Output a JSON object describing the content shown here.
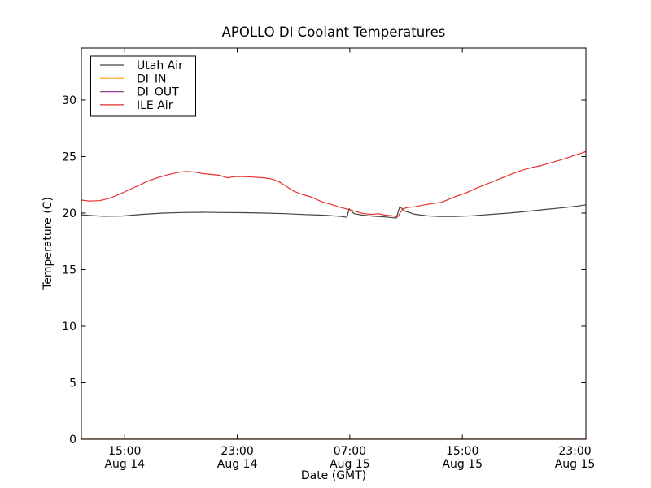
{
  "figure": {
    "background": "#ffffff",
    "axis_color": "#000000"
  },
  "chart_data": {
    "type": "line",
    "title": "APOLLO DI Coolant Temperatures",
    "xlabel": "Date (GMT)",
    "ylabel": "Temperature (C)",
    "grid": false,
    "legend_position": "upper left",
    "x_units": "hours_since_Aug14_0000_GMT",
    "xlim": [
      11.92,
      47.78
    ],
    "ylim": [
      0,
      34.6
    ],
    "yticks": [
      0,
      5,
      10,
      15,
      20,
      25,
      30
    ],
    "xticks": [
      {
        "t": 15,
        "time": "15:00",
        "date": "Aug 14"
      },
      {
        "t": 23,
        "time": "23:00",
        "date": "Aug 14"
      },
      {
        "t": 31,
        "time": "07:00",
        "date": "Aug 15"
      },
      {
        "t": 39,
        "time": "15:00",
        "date": "Aug 15"
      },
      {
        "t": 47,
        "time": "23:00",
        "date": "Aug 15"
      }
    ],
    "series": [
      {
        "name": "Utah Air",
        "color": "#444444",
        "points": [
          [
            11.92,
            19.85
          ],
          [
            12.6,
            19.78
          ],
          [
            13.5,
            19.72
          ],
          [
            14.8,
            19.74
          ],
          [
            16.2,
            19.88
          ],
          [
            17.7,
            20.0
          ],
          [
            19.1,
            20.05
          ],
          [
            20.6,
            20.07
          ],
          [
            22.0,
            20.05
          ],
          [
            23.5,
            20.03
          ],
          [
            25.0,
            20.0
          ],
          [
            26.4,
            19.95
          ],
          [
            27.8,
            19.87
          ],
          [
            29.3,
            19.8
          ],
          [
            30.4,
            19.7
          ],
          [
            30.8,
            19.62
          ],
          [
            30.95,
            20.38
          ],
          [
            31.3,
            19.95
          ],
          [
            31.9,
            19.82
          ],
          [
            32.7,
            19.72
          ],
          [
            33.6,
            19.65
          ],
          [
            34.3,
            19.55
          ],
          [
            34.55,
            20.58
          ],
          [
            34.9,
            20.18
          ],
          [
            35.6,
            19.9
          ],
          [
            36.5,
            19.75
          ],
          [
            37.4,
            19.7
          ],
          [
            38.5,
            19.7
          ],
          [
            39.7,
            19.76
          ],
          [
            41.0,
            19.88
          ],
          [
            42.3,
            20.0
          ],
          [
            43.6,
            20.15
          ],
          [
            44.9,
            20.32
          ],
          [
            46.2,
            20.48
          ],
          [
            47.2,
            20.62
          ],
          [
            47.78,
            20.73
          ]
        ]
      },
      {
        "name": "DI_IN",
        "color": "#ffb045",
        "opacity": 0.6,
        "points": [
          [
            11.92,
            0.03
          ],
          [
            47.78,
            0.03
          ]
        ]
      },
      {
        "name": "DI_OUT",
        "color": "#93439a",
        "opacity": 0.6,
        "points": [
          [
            11.92,
            0
          ],
          [
            47.78,
            0
          ]
        ]
      },
      {
        "name": "ILE Air",
        "color": "#e62e2e",
        "points": [
          [
            11.92,
            21.15
          ],
          [
            12.5,
            21.06
          ],
          [
            13.2,
            21.1
          ],
          [
            13.9,
            21.3
          ],
          [
            14.6,
            21.65
          ],
          [
            15.3,
            22.05
          ],
          [
            16.0,
            22.45
          ],
          [
            16.7,
            22.85
          ],
          [
            17.4,
            23.15
          ],
          [
            18.1,
            23.4
          ],
          [
            18.8,
            23.6
          ],
          [
            19.4,
            23.68
          ],
          [
            20.0,
            23.62
          ],
          [
            20.5,
            23.5
          ],
          [
            21.1,
            23.42
          ],
          [
            21.7,
            23.35
          ],
          [
            22.3,
            23.12
          ],
          [
            22.8,
            23.22
          ],
          [
            23.5,
            23.22
          ],
          [
            24.2,
            23.18
          ],
          [
            24.9,
            23.12
          ],
          [
            25.5,
            23.0
          ],
          [
            26.0,
            22.75
          ],
          [
            26.5,
            22.35
          ],
          [
            27.0,
            21.95
          ],
          [
            27.6,
            21.65
          ],
          [
            28.3,
            21.4
          ],
          [
            29.0,
            21.0
          ],
          [
            29.6,
            20.8
          ],
          [
            30.2,
            20.55
          ],
          [
            30.8,
            20.35
          ],
          [
            31.4,
            20.15
          ],
          [
            32.0,
            19.95
          ],
          [
            32.6,
            19.88
          ],
          [
            33.0,
            19.95
          ],
          [
            33.5,
            19.82
          ],
          [
            34.0,
            19.75
          ],
          [
            34.4,
            19.67
          ],
          [
            34.75,
            20.35
          ],
          [
            35.1,
            20.5
          ],
          [
            35.6,
            20.55
          ],
          [
            36.2,
            20.7
          ],
          [
            36.9,
            20.85
          ],
          [
            37.5,
            20.95
          ],
          [
            38.1,
            21.25
          ],
          [
            38.6,
            21.5
          ],
          [
            39.2,
            21.75
          ],
          [
            39.9,
            22.15
          ],
          [
            40.5,
            22.45
          ],
          [
            41.2,
            22.8
          ],
          [
            41.9,
            23.15
          ],
          [
            42.6,
            23.5
          ],
          [
            43.3,
            23.8
          ],
          [
            44.0,
            24.05
          ],
          [
            44.6,
            24.2
          ],
          [
            45.3,
            24.45
          ],
          [
            46.0,
            24.7
          ],
          [
            46.6,
            24.95
          ],
          [
            47.2,
            25.2
          ],
          [
            47.6,
            25.35
          ],
          [
            47.78,
            25.45
          ]
        ]
      }
    ]
  }
}
